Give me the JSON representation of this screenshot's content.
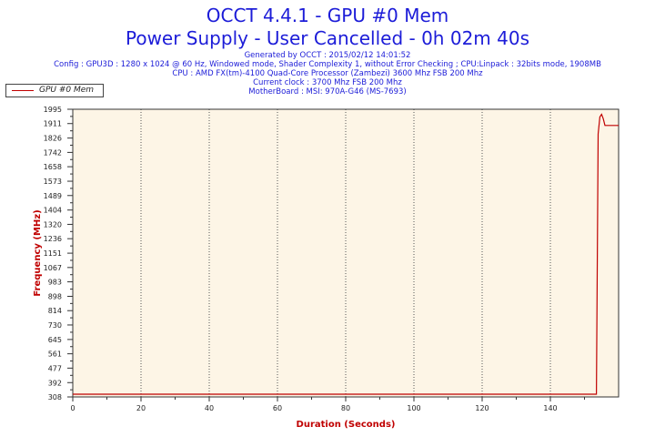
{
  "header": {
    "title_line1": "OCCT 4.4.1 - GPU #0 Mem",
    "title_line2": "Power Supply - User Cancelled - 0h 02m 40s",
    "info_lines": [
      "Generated by OCCT : 2015/02/12 14:01:52",
      "Config : GPU3D : 1280 x 1024 @ 60 Hz, Windowed mode, Shader Complexity 1, without Error Checking ; CPU:Linpack : 32bits mode, 1908MB",
      "CPU : AMD FX(tm)-4100 Quad-Core Processor (Zambezi) 3600 Mhz FSB 200 Mhz",
      "Current clock : 3700 Mhz FSB 200 Mhz",
      "MotherBoard : MSI: 970A-G46 (MS-7693)"
    ]
  },
  "legend": {
    "label": "GPU #0 Mem"
  },
  "colors": {
    "title": "#1c1cd8",
    "axis_label": "#c00000",
    "series": "#c00000",
    "plot_bg": "#fdf5e6",
    "grid": "#555555"
  },
  "chart_data": {
    "type": "line",
    "xlabel": "Duration (Seconds)",
    "ylabel": "Frequency (MHz)",
    "xlim": [
      0,
      160
    ],
    "ylim": [
      308,
      1995
    ],
    "x_ticks": [
      0,
      20,
      40,
      60,
      80,
      100,
      120,
      140
    ],
    "y_ticks": [
      308,
      392,
      477,
      561,
      645,
      730,
      814,
      898,
      983,
      1067,
      1151,
      1236,
      1320,
      1404,
      1489,
      1573,
      1658,
      1742,
      1826,
      1911,
      1995
    ],
    "grid": "vertical dotted",
    "legend_position": "top-left",
    "series": [
      {
        "name": "GPU #0 Mem",
        "x": [
          0,
          20,
          40,
          60,
          80,
          100,
          120,
          140,
          153,
          153.5,
          154,
          154.5,
          155,
          155.5,
          156,
          158,
          160
        ],
        "y": [
          324,
          324,
          324,
          324,
          324,
          324,
          324,
          324,
          324,
          324,
          1850,
          1950,
          1965,
          1940,
          1900,
          1900,
          1900
        ]
      }
    ]
  }
}
